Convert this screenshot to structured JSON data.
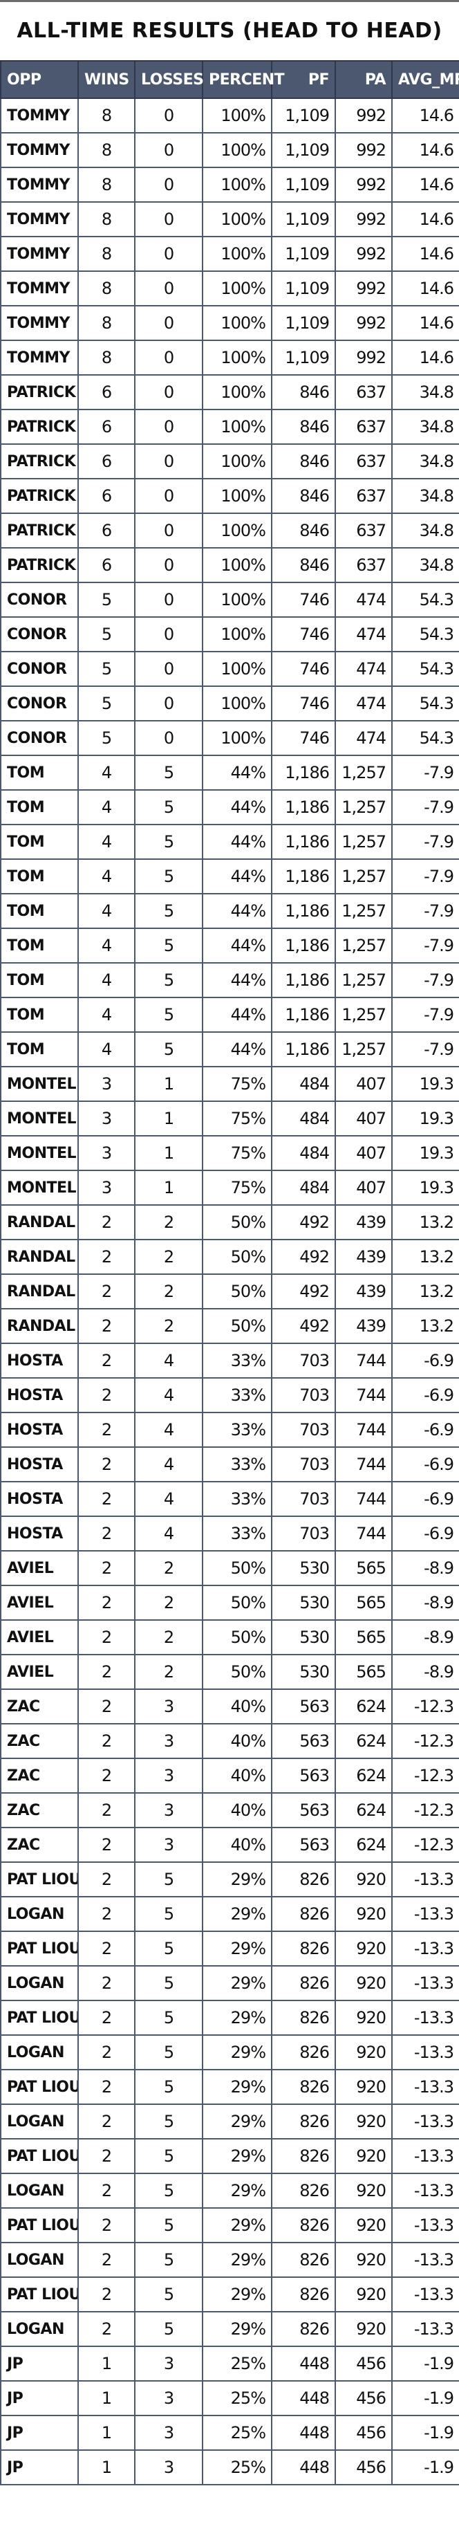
{
  "title": "ALL-TIME RESULTS (HEAD TO HEAD)",
  "columns": [
    "OPP",
    "WINS",
    "LOSSES",
    "PERCENT",
    "PF",
    "PA",
    "AVG_MRG"
  ],
  "rows": [
    [
      "TOMMY",
      "8",
      "0",
      "100%",
      "1,109",
      "992",
      "14.6"
    ],
    [
      "TOMMY",
      "8",
      "0",
      "100%",
      "1,109",
      "992",
      "14.6"
    ],
    [
      "TOMMY",
      "8",
      "0",
      "100%",
      "1,109",
      "992",
      "14.6"
    ],
    [
      "TOMMY",
      "8",
      "0",
      "100%",
      "1,109",
      "992",
      "14.6"
    ],
    [
      "TOMMY",
      "8",
      "0",
      "100%",
      "1,109",
      "992",
      "14.6"
    ],
    [
      "TOMMY",
      "8",
      "0",
      "100%",
      "1,109",
      "992",
      "14.6"
    ],
    [
      "TOMMY",
      "8",
      "0",
      "100%",
      "1,109",
      "992",
      "14.6"
    ],
    [
      "TOMMY",
      "8",
      "0",
      "100%",
      "1,109",
      "992",
      "14.6"
    ],
    [
      "PATRICK",
      "6",
      "0",
      "100%",
      "846",
      "637",
      "34.8"
    ],
    [
      "PATRICK",
      "6",
      "0",
      "100%",
      "846",
      "637",
      "34.8"
    ],
    [
      "PATRICK",
      "6",
      "0",
      "100%",
      "846",
      "637",
      "34.8"
    ],
    [
      "PATRICK",
      "6",
      "0",
      "100%",
      "846",
      "637",
      "34.8"
    ],
    [
      "PATRICK",
      "6",
      "0",
      "100%",
      "846",
      "637",
      "34.8"
    ],
    [
      "PATRICK",
      "6",
      "0",
      "100%",
      "846",
      "637",
      "34.8"
    ],
    [
      "CONOR",
      "5",
      "0",
      "100%",
      "746",
      "474",
      "54.3"
    ],
    [
      "CONOR",
      "5",
      "0",
      "100%",
      "746",
      "474",
      "54.3"
    ],
    [
      "CONOR",
      "5",
      "0",
      "100%",
      "746",
      "474",
      "54.3"
    ],
    [
      "CONOR",
      "5",
      "0",
      "100%",
      "746",
      "474",
      "54.3"
    ],
    [
      "CONOR",
      "5",
      "0",
      "100%",
      "746",
      "474",
      "54.3"
    ],
    [
      "TOM",
      "4",
      "5",
      "44%",
      "1,186",
      "1,257",
      "-7.9"
    ],
    [
      "TOM",
      "4",
      "5",
      "44%",
      "1,186",
      "1,257",
      "-7.9"
    ],
    [
      "TOM",
      "4",
      "5",
      "44%",
      "1,186",
      "1,257",
      "-7.9"
    ],
    [
      "TOM",
      "4",
      "5",
      "44%",
      "1,186",
      "1,257",
      "-7.9"
    ],
    [
      "TOM",
      "4",
      "5",
      "44%",
      "1,186",
      "1,257",
      "-7.9"
    ],
    [
      "TOM",
      "4",
      "5",
      "44%",
      "1,186",
      "1,257",
      "-7.9"
    ],
    [
      "TOM",
      "4",
      "5",
      "44%",
      "1,186",
      "1,257",
      "-7.9"
    ],
    [
      "TOM",
      "4",
      "5",
      "44%",
      "1,186",
      "1,257",
      "-7.9"
    ],
    [
      "TOM",
      "4",
      "5",
      "44%",
      "1,186",
      "1,257",
      "-7.9"
    ],
    [
      "MONTEL",
      "3",
      "1",
      "75%",
      "484",
      "407",
      "19.3"
    ],
    [
      "MONTEL",
      "3",
      "1",
      "75%",
      "484",
      "407",
      "19.3"
    ],
    [
      "MONTEL",
      "3",
      "1",
      "75%",
      "484",
      "407",
      "19.3"
    ],
    [
      "MONTEL",
      "3",
      "1",
      "75%",
      "484",
      "407",
      "19.3"
    ],
    [
      "RANDAL",
      "2",
      "2",
      "50%",
      "492",
      "439",
      "13.2"
    ],
    [
      "RANDAL",
      "2",
      "2",
      "50%",
      "492",
      "439",
      "13.2"
    ],
    [
      "RANDAL",
      "2",
      "2",
      "50%",
      "492",
      "439",
      "13.2"
    ],
    [
      "RANDAL",
      "2",
      "2",
      "50%",
      "492",
      "439",
      "13.2"
    ],
    [
      "HOSTA",
      "2",
      "4",
      "33%",
      "703",
      "744",
      "-6.9"
    ],
    [
      "HOSTA",
      "2",
      "4",
      "33%",
      "703",
      "744",
      "-6.9"
    ],
    [
      "HOSTA",
      "2",
      "4",
      "33%",
      "703",
      "744",
      "-6.9"
    ],
    [
      "HOSTA",
      "2",
      "4",
      "33%",
      "703",
      "744",
      "-6.9"
    ],
    [
      "HOSTA",
      "2",
      "4",
      "33%",
      "703",
      "744",
      "-6.9"
    ],
    [
      "HOSTA",
      "2",
      "4",
      "33%",
      "703",
      "744",
      "-6.9"
    ],
    [
      "AVIEL",
      "2",
      "2",
      "50%",
      "530",
      "565",
      "-8.9"
    ],
    [
      "AVIEL",
      "2",
      "2",
      "50%",
      "530",
      "565",
      "-8.9"
    ],
    [
      "AVIEL",
      "2",
      "2",
      "50%",
      "530",
      "565",
      "-8.9"
    ],
    [
      "AVIEL",
      "2",
      "2",
      "50%",
      "530",
      "565",
      "-8.9"
    ],
    [
      "ZAC",
      "2",
      "3",
      "40%",
      "563",
      "624",
      "-12.3"
    ],
    [
      "ZAC",
      "2",
      "3",
      "40%",
      "563",
      "624",
      "-12.3"
    ],
    [
      "ZAC",
      "2",
      "3",
      "40%",
      "563",
      "624",
      "-12.3"
    ],
    [
      "ZAC",
      "2",
      "3",
      "40%",
      "563",
      "624",
      "-12.3"
    ],
    [
      "ZAC",
      "2",
      "3",
      "40%",
      "563",
      "624",
      "-12.3"
    ],
    [
      "PAT LIOU",
      "2",
      "5",
      "29%",
      "826",
      "920",
      "-13.3"
    ],
    [
      "LOGAN",
      "2",
      "5",
      "29%",
      "826",
      "920",
      "-13.3"
    ],
    [
      "PAT LIOU",
      "2",
      "5",
      "29%",
      "826",
      "920",
      "-13.3"
    ],
    [
      "LOGAN",
      "2",
      "5",
      "29%",
      "826",
      "920",
      "-13.3"
    ],
    [
      "PAT LIOU",
      "2",
      "5",
      "29%",
      "826",
      "920",
      "-13.3"
    ],
    [
      "LOGAN",
      "2",
      "5",
      "29%",
      "826",
      "920",
      "-13.3"
    ],
    [
      "PAT LIOU",
      "2",
      "5",
      "29%",
      "826",
      "920",
      "-13.3"
    ],
    [
      "LOGAN",
      "2",
      "5",
      "29%",
      "826",
      "920",
      "-13.3"
    ],
    [
      "PAT LIOU",
      "2",
      "5",
      "29%",
      "826",
      "920",
      "-13.3"
    ],
    [
      "LOGAN",
      "2",
      "5",
      "29%",
      "826",
      "920",
      "-13.3"
    ],
    [
      "PAT LIOU",
      "2",
      "5",
      "29%",
      "826",
      "920",
      "-13.3"
    ],
    [
      "LOGAN",
      "2",
      "5",
      "29%",
      "826",
      "920",
      "-13.3"
    ],
    [
      "PAT LIOU",
      "2",
      "5",
      "29%",
      "826",
      "920",
      "-13.3"
    ],
    [
      "LOGAN",
      "2",
      "5",
      "29%",
      "826",
      "920",
      "-13.3"
    ],
    [
      "JP",
      "1",
      "3",
      "25%",
      "448",
      "456",
      "-1.9"
    ],
    [
      "JP",
      "1",
      "3",
      "25%",
      "448",
      "456",
      "-1.9"
    ],
    [
      "JP",
      "1",
      "3",
      "25%",
      "448",
      "456",
      "-1.9"
    ],
    [
      "JP",
      "1",
      "3",
      "25%",
      "448",
      "456",
      "-1.9"
    ]
  ]
}
